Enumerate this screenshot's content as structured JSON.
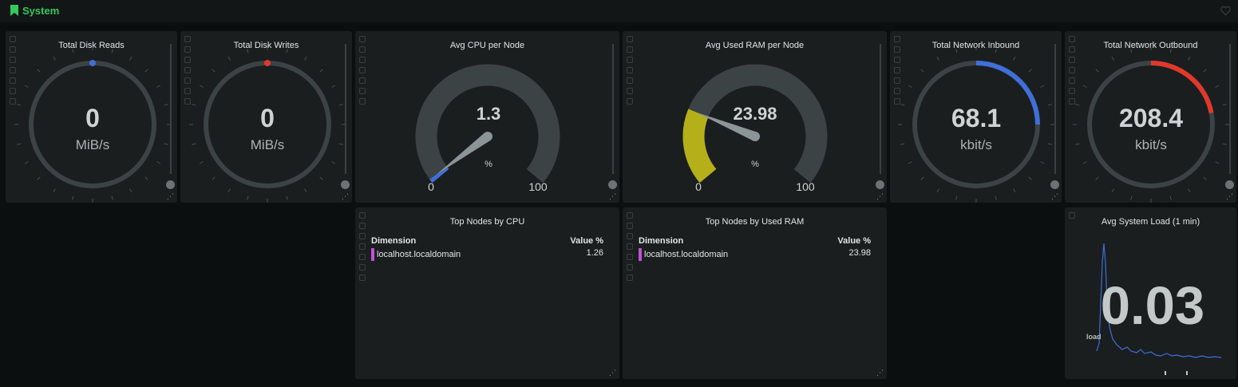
{
  "section": {
    "title": "System"
  },
  "gauges": {
    "disk_reads": {
      "title": "Total Disk Reads",
      "value": "0",
      "unit": "MiB/s"
    },
    "disk_writes": {
      "title": "Total Disk Writes",
      "value": "0",
      "unit": "MiB/s"
    },
    "cpu": {
      "title": "Avg CPU per Node",
      "value": "1.3",
      "unit": "%",
      "min": "0",
      "max": "100",
      "fraction": 0.013
    },
    "ram": {
      "title": "Avg Used RAM per Node",
      "value": "23.98",
      "unit": "%",
      "min": "0",
      "max": "100",
      "fraction": 0.2398
    },
    "net_in": {
      "title": "Total Network Inbound",
      "value": "68.1",
      "unit": "kbit/s",
      "fraction": 0.25
    },
    "net_out": {
      "title": "Total Network Outbound",
      "value": "208.4",
      "unit": "kbit/s",
      "fraction": 0.22
    }
  },
  "tables": {
    "cpu": {
      "title": "Top Nodes by CPU",
      "col_dimension": "Dimension",
      "col_value": "Value %",
      "rows": [
        {
          "name": "localhost.localdomain",
          "value": "1.26"
        }
      ]
    },
    "ram": {
      "title": "Top Nodes by Used RAM",
      "col_dimension": "Dimension",
      "col_value": "Value %",
      "rows": [
        {
          "name": "localhost.localdomain",
          "value": "23.98"
        }
      ]
    }
  },
  "load": {
    "title": "Avg System Load (1 min)",
    "value": "0.03",
    "series_label": "load"
  },
  "colors": {
    "accent_green": "#35c85b",
    "blue": "#3f6fd8",
    "red": "#e0382c",
    "yellow": "#b5b019",
    "track": "#3c4344",
    "swatch": "#c251d6"
  }
}
